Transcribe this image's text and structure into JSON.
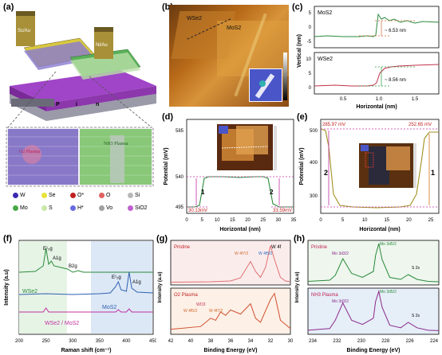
{
  "panels": {
    "a": {
      "label": "(a)",
      "device": {
        "left_contact": "Sc/Au",
        "right_contact": "Ni/Au",
        "p": "P",
        "i": "i",
        "n": "n"
      },
      "zoom": {
        "left_plasma": "O2 Plasma",
        "right_plasma": "NH3 Plasma"
      },
      "legend": [
        {
          "symbol": "W",
          "color": "#3a2ab0"
        },
        {
          "symbol": "Se",
          "color": "#e8e23a"
        },
        {
          "symbol": "O*",
          "color": "#c02020"
        },
        {
          "symbol": "O",
          "color": "#e06060"
        },
        {
          "symbol": "Si",
          "color": "#b8b8b8"
        },
        {
          "symbol": "Mo",
          "color": "#48a848"
        },
        {
          "symbol": "S",
          "color": "#c8e8a8"
        },
        {
          "symbol": "H*",
          "color": "#6a6ae0"
        },
        {
          "symbol": "Vo",
          "color": "#a0a0a0"
        },
        {
          "symbol": "SiO2",
          "color": "#c060d0"
        }
      ]
    },
    "b": {
      "label": "(b)",
      "labels": [
        "WSe2",
        "MoS2"
      ]
    },
    "c": {
      "label": "(c)",
      "ylabel": "Vertical (nm)",
      "xlabel": "Horizontal (nm)",
      "top": {
        "name": "MoS2",
        "annotation": "~ 6.53 nm",
        "yticks": [
          "5",
          "0",
          "-5"
        ],
        "color": "#2a8a3a"
      },
      "bottom": {
        "name": "WSe2",
        "annotation": "~ 8.56 nm",
        "yticks": [
          "10",
          "5",
          "0"
        ],
        "color": "#c0304a"
      },
      "xticks": [
        "0.5",
        "1.0",
        "1.5"
      ]
    },
    "d": {
      "label": "(d)",
      "ylabel": "Potential (mV)",
      "xlabel": "Horizontal (nm)",
      "ann_low": "30.13mV",
      "ann_right": "33.59mV",
      "region1": "1",
      "region2": "2",
      "yticks": [
        "585",
        "540",
        "495"
      ],
      "xticks": [
        "0",
        "5",
        "10",
        "15",
        "20",
        "25",
        "30",
        "35"
      ]
    },
    "e": {
      "label": "(e)",
      "ylabel": "Potential (mV)",
      "xlabel": "Horizontal (nm)",
      "ann_left": "285.97 mV",
      "ann_right": "252.65 mV",
      "region1": "1",
      "region2": "2",
      "yticks": [
        "500",
        "400",
        "300"
      ],
      "xticks": [
        "0",
        "5",
        "10",
        "15",
        "20",
        "25"
      ]
    },
    "f": {
      "label": "(f)",
      "ylabel": "Intensity (a.u)",
      "xlabel": "Raman shift (cm⁻¹)",
      "xticks": [
        "200",
        "250",
        "300",
        "350",
        "400",
        "450"
      ],
      "labels": {
        "e2g_wse2": "E¹₂g",
        "a1g_wse2": "A1g",
        "b2g": "B2g",
        "e2g_mos2": "E¹₂g",
        "a1g_mos2": "A1g",
        "wse2": "WSe2",
        "mos2": "MoS2",
        "het": "WSe2 / MoS2"
      },
      "chart_data": {
        "type": "line",
        "xlim": [
          200,
          450
        ],
        "series": [
          {
            "name": "WSe2",
            "color": "#2a8a3a",
            "x": [
              200,
              230,
              245,
              250,
              255,
              260,
              265,
              290,
              300,
              310,
              320,
              340,
              360,
              380,
              400,
              420,
              450
            ],
            "values": [
              0.62,
              0.63,
              0.7,
              0.92,
              0.72,
              0.76,
              0.7,
              0.66,
              0.62,
              0.64,
              0.62,
              0.62,
              0.62,
              0.62,
              0.62,
              0.62,
              0.62
            ]
          },
          {
            "name": "MoS2",
            "color": "#3060b0",
            "x": [
              200,
              250,
              300,
              350,
              370,
              380,
              385,
              390,
              400,
              405,
              410,
              420,
              450
            ],
            "values": [
              0.34,
              0.35,
              0.34,
              0.35,
              0.36,
              0.44,
              0.5,
              0.4,
              0.38,
              0.62,
              0.42,
              0.37,
              0.36
            ]
          },
          {
            "name": "WSe2 / MoS2",
            "color": "#c030a0",
            "x": [
              200,
              245,
              250,
              255,
              300,
              350,
              380,
              385,
              390,
              400,
              405,
              410,
              450
            ],
            "values": [
              0.12,
              0.12,
              0.17,
              0.12,
              0.12,
              0.12,
              0.12,
              0.15,
              0.12,
              0.12,
              0.16,
              0.12,
              0.12
            ]
          }
        ]
      }
    },
    "g": {
      "label": "(g)",
      "ylabel": "Intensity (a.u)",
      "xlabel": "Binding Energy (eV)",
      "xticks": [
        "42",
        "40",
        "38",
        "36",
        "34",
        "32",
        "30"
      ],
      "top": {
        "name": "Pristine",
        "peak": "W 4f",
        "sub1": "W 4f7/2",
        "sub2": "W 4f5/2"
      },
      "bottom": {
        "name": "O2 Plasma",
        "sub1": "WO3",
        "sub2": "W 4f5/2",
        "sub3": "W 4f7/2"
      },
      "chart_data": {
        "type": "line",
        "xlim": [
          42,
          30
        ],
        "series": [
          {
            "name": "Pristine",
            "color": "#e07070",
            "x": [
              42,
              38,
              36,
              35,
              34,
              33.5,
              33,
              32.5,
              32,
              31.6,
              31,
              30.5,
              30
            ],
            "values": [
              0.03,
              0.04,
              0.06,
              0.14,
              0.55,
              0.3,
              0.15,
              0.4,
              0.95,
              0.6,
              0.15,
              0.06,
              0.04
            ]
          },
          {
            "name": "O2 Plasma",
            "color": "#d05030",
            "x": [
              42,
              39,
              38,
              37.5,
              37,
              36.5,
              36,
              35,
              34,
              33.5,
              33,
              32,
              31.6,
              31,
              30
            ],
            "values": [
              0.08,
              0.15,
              0.35,
              0.3,
              0.5,
              0.42,
              0.55,
              0.45,
              0.7,
              0.35,
              0.25,
              0.8,
              0.95,
              0.3,
              0.1
            ]
          }
        ]
      }
    },
    "h": {
      "label": "(h)",
      "ylabel": "Intensity (a.u)",
      "xlabel": "Binding Energy (eV)",
      "xticks": [
        "234",
        "232",
        "230",
        "228",
        "226",
        "224"
      ],
      "top": {
        "name": "Pristine",
        "mo52": "Mo 3d5/2",
        "mo32": "Mo 3d3/2",
        "s2s": "S 2s"
      },
      "bottom": {
        "name": "NH3 Plasma",
        "mo52": "Mo 3d5/2",
        "mo32": "Mo 3d3/2",
        "s2s": "S 2s"
      },
      "chart_data": {
        "type": "line",
        "xlim": [
          235,
          223
        ],
        "series": [
          {
            "name": "Pristine",
            "color": "#2a8a3a",
            "x": [
              235,
              233,
              232.5,
              231.8,
              231,
              230,
              229,
              228.8,
              228.5,
              228.2,
              227.5,
              226.5,
              225.8,
              225,
              224,
              223
            ],
            "values": [
              0.05,
              0.08,
              0.2,
              0.62,
              0.25,
              0.15,
              0.3,
              0.7,
              1.0,
              0.6,
              0.15,
              0.1,
              0.22,
              0.1,
              0.05,
              0.04
            ]
          },
          {
            "name": "NH3 Plasma",
            "color": "#8a2a8a",
            "x": [
              235,
              233,
              232.5,
              231.8,
              231,
              230,
              229,
              228.8,
              228.5,
              228.2,
              227.5,
              226.5,
              225.8,
              225,
              224,
              223
            ],
            "values": [
              0.06,
              0.1,
              0.3,
              0.72,
              0.3,
              0.2,
              0.35,
              0.75,
              1.0,
              0.62,
              0.18,
              0.12,
              0.25,
              0.12,
              0.06,
              0.05
            ]
          }
        ]
      }
    }
  }
}
